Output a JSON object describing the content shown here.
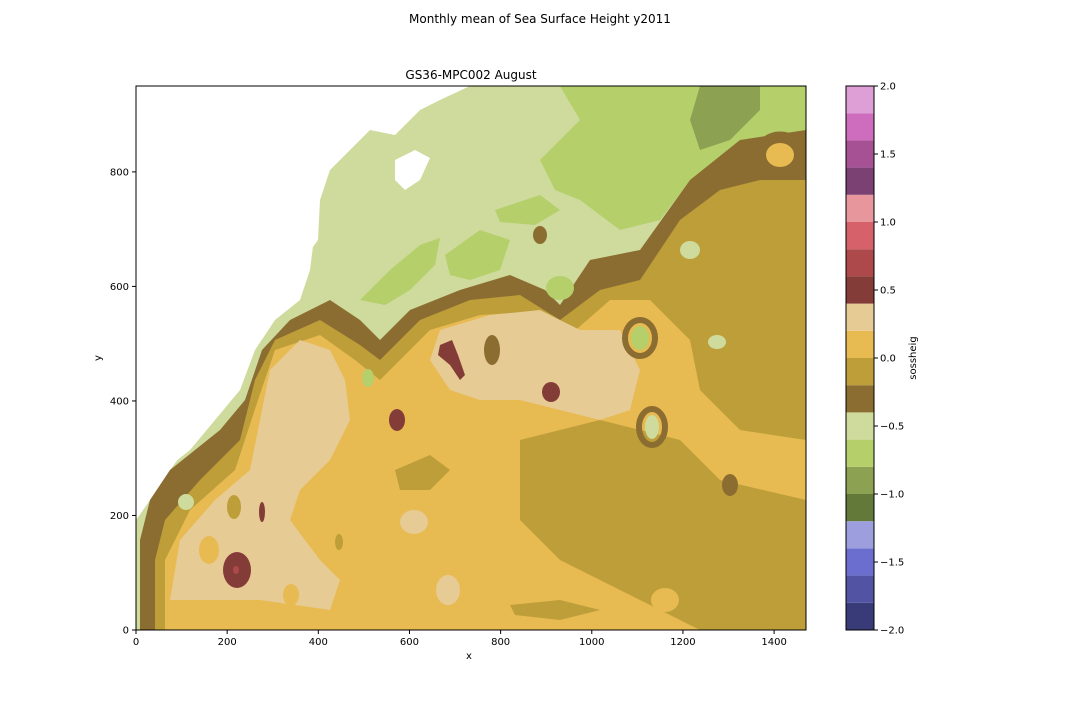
{
  "chart_data": {
    "type": "heatmap",
    "suptitle": "Monthly mean of Sea Surface Height y2011",
    "title": "GS36-MPC002 August",
    "xlabel": "x",
    "ylabel": "y",
    "xlim": [
      0,
      1470
    ],
    "ylim": [
      0,
      950
    ],
    "xticks": [
      0,
      200,
      400,
      600,
      800,
      1000,
      1200,
      1400
    ],
    "yticks": [
      0,
      200,
      400,
      600,
      800
    ],
    "colorbar": {
      "label": "sossheig",
      "range": [
        -2.0,
        2.0
      ],
      "ticks": [
        -2.0,
        -1.5,
        -1.0,
        -0.5,
        0.0,
        0.5,
        1.0,
        1.5,
        2.0
      ],
      "tick_labels": [
        "−2.0",
        "−1.5",
        "−1.0",
        "−0.5",
        "0.0",
        "0.5",
        "1.0",
        "1.5",
        "2.0"
      ],
      "levels": [
        -2.0,
        -1.8,
        -1.6,
        -1.4,
        -1.2,
        -1.0,
        -0.8,
        -0.6,
        -0.4,
        -0.2,
        0.0,
        0.2,
        0.4,
        0.6,
        0.8,
        1.0,
        1.2,
        1.4,
        1.6,
        1.8,
        2.0
      ],
      "colors": [
        "#393b79",
        "#5254a3",
        "#6b6ecf",
        "#9c9ede",
        "#637939",
        "#8ca252",
        "#b5cf6b",
        "#cedb9c",
        "#8c6d31",
        "#bd9e39",
        "#e7ba52",
        "#e7cb94",
        "#843c39",
        "#ad494a",
        "#d6616b",
        "#e7969c",
        "#7b4173",
        "#a55194",
        "#ce6dbd",
        "#de9ed6"
      ]
    }
  }
}
